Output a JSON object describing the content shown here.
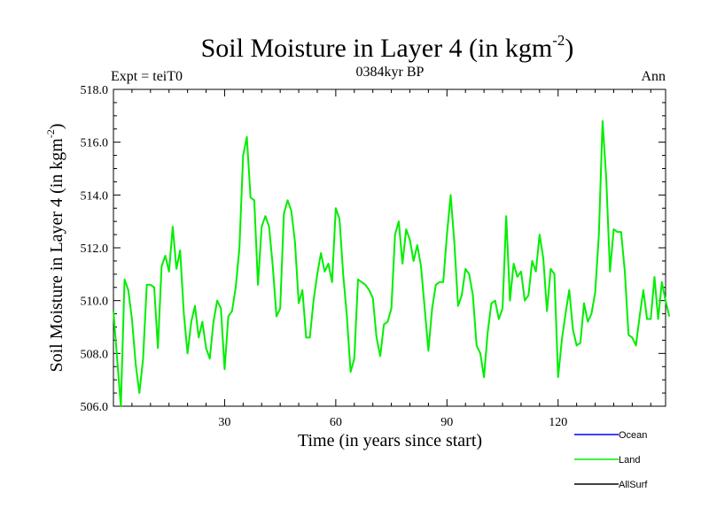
{
  "chart_data": {
    "type": "line",
    "title": "Soil Moisture in Layer 4 (in kgm",
    "title_sup": "-2",
    "title_close": ")",
    "subtitle": "0384kyr BP",
    "left_label": "Expt = teiT0",
    "right_label": "Ann",
    "xlabel": "Time (in years since start)",
    "ylabel": "Soil Moisture in Layer 4 (in kgm",
    "ylabel_sup": "-2",
    "ylabel_close": ")",
    "xlim": [
      0,
      149
    ],
    "ylim": [
      506.0,
      518.0
    ],
    "x_ticks": [
      30,
      60,
      90,
      120
    ],
    "x_tick_labels": [
      "30",
      "60",
      "90",
      "120"
    ],
    "y_ticks": [
      506,
      508,
      510,
      512,
      514,
      516,
      518
    ],
    "y_tick_labels": [
      "506.0",
      "508.0",
      "510.0",
      "512.0",
      "514.0",
      "516.0",
      "518.0"
    ],
    "legend": [
      {
        "name": "Ocean",
        "color": "#0000ff"
      },
      {
        "name": "Land",
        "color": "#00ee00"
      },
      {
        "name": "AllSurf",
        "color": "#000000"
      }
    ],
    "series": [
      {
        "name": "Land",
        "color": "#00ee00",
        "x_start": 0,
        "x_step": 1,
        "values": [
          509.6,
          507.8,
          506.0,
          510.8,
          510.4,
          509.3,
          507.6,
          506.5,
          507.8,
          510.6,
          510.6,
          510.5,
          508.2,
          511.3,
          511.7,
          511.1,
          512.8,
          511.2,
          511.9,
          509.5,
          508.0,
          509.2,
          509.8,
          508.6,
          509.2,
          508.2,
          507.8,
          509.2,
          510.0,
          509.7,
          507.4,
          509.4,
          509.6,
          510.5,
          512.0,
          515.5,
          516.2,
          513.9,
          513.8,
          510.6,
          512.8,
          513.2,
          512.8,
          511.3,
          509.4,
          509.7,
          513.3,
          513.8,
          513.4,
          512.2,
          509.9,
          510.4,
          508.6,
          508.6,
          510.0,
          511.0,
          511.8,
          511.1,
          511.4,
          510.7,
          513.5,
          513.1,
          511.0,
          509.4,
          507.3,
          507.8,
          510.8,
          510.7,
          510.6,
          510.4,
          510.1,
          508.6,
          507.9,
          509.1,
          509.2,
          509.7,
          512.5,
          513.0,
          511.4,
          512.7,
          512.3,
          511.5,
          512.1,
          511.3,
          509.7,
          508.1,
          509.7,
          510.6,
          510.7,
          510.7,
          512.5,
          514.0,
          512.2,
          509.8,
          510.2,
          511.2,
          511.0,
          510.2,
          508.3,
          508.0,
          507.1,
          508.8,
          509.9,
          510.0,
          509.3,
          509.7,
          513.2,
          510.0,
          511.4,
          510.9,
          511.1,
          510.0,
          510.2,
          511.5,
          511.1,
          512.5,
          511.6,
          509.6,
          511.2,
          511.0,
          507.1,
          508.5,
          509.5,
          510.4,
          508.9,
          508.3,
          508.4,
          509.9,
          509.2,
          509.5,
          510.3,
          512.5,
          516.8,
          514.6,
          511.1,
          512.7,
          512.6,
          512.6,
          511.1,
          508.7,
          508.6,
          508.3,
          509.4,
          510.4,
          509.3,
          509.3,
          510.9,
          509.3,
          510.7,
          510.0,
          509.4
        ]
      }
    ]
  }
}
